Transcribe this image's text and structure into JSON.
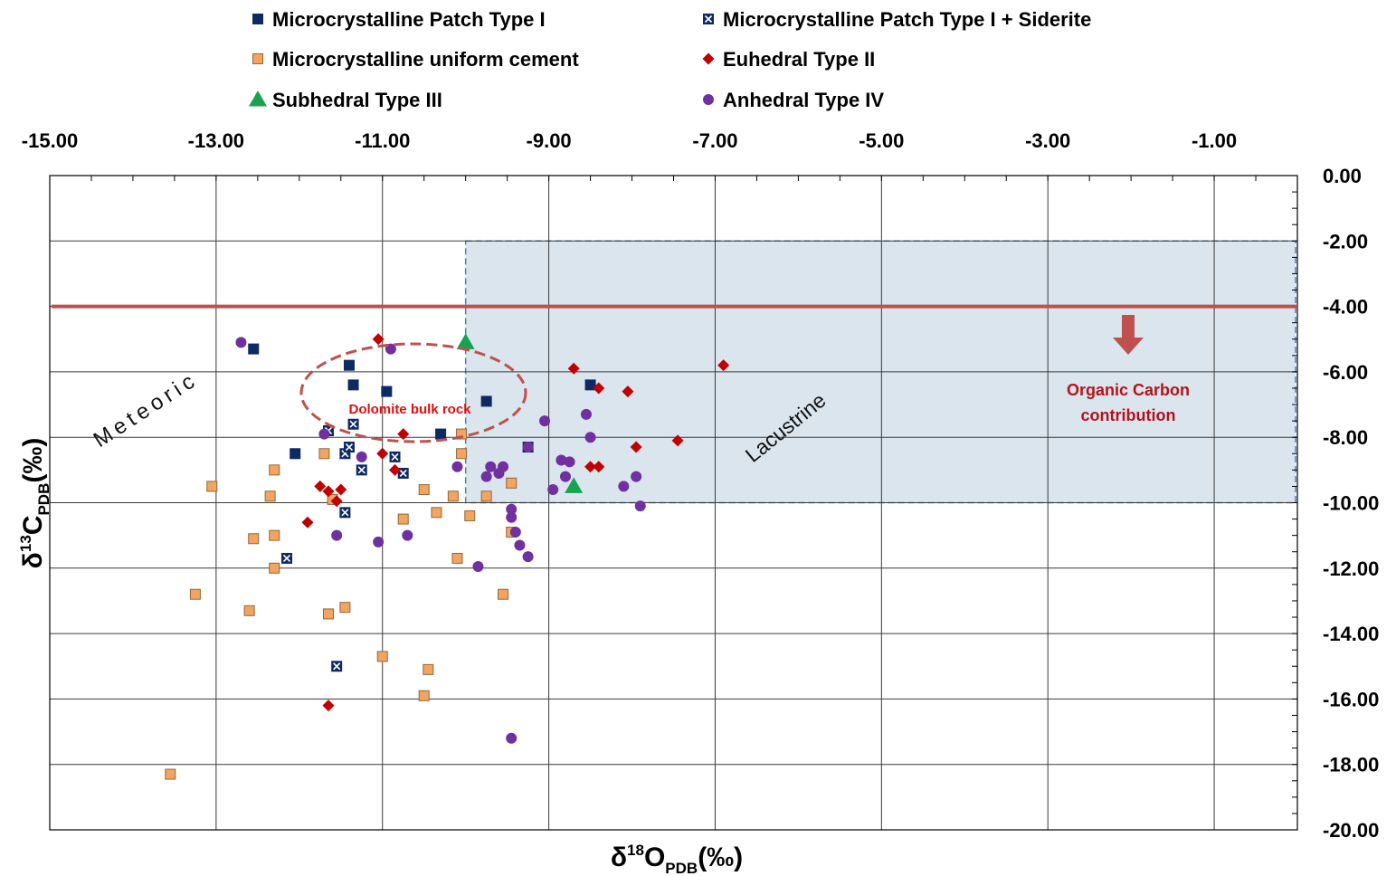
{
  "chart_data": {
    "type": "scatter",
    "xlabel": "δ18OPDB(‰)",
    "xlabel_parts": {
      "base": "δ",
      "sup": "18",
      "main": "O",
      "sub": "PDB",
      "unit": "(‰)"
    },
    "ylabel": "δ13CPDB(‰)",
    "ylabel_parts": {
      "base": "δ",
      "sup": "13",
      "main": "C",
      "sub": "PDB",
      "unit": "(‰)"
    },
    "xlim": [
      -15,
      0
    ],
    "ylim": [
      -20,
      0
    ],
    "x_axis_position": "top",
    "y_axis_position": "right",
    "grid": true,
    "legend_position": "top",
    "x_ticks": [
      "-15.00",
      "-13.00",
      "-11.00",
      "-9.00",
      "-7.00",
      "-5.00",
      "-3.00",
      "-1.00"
    ],
    "y_ticks": [
      "0.00",
      "-2.00",
      "-4.00",
      "-6.00",
      "-8.00",
      "-10.00",
      "-12.00",
      "-14.00",
      "-16.00",
      "-18.00",
      "-20.00"
    ],
    "series": [
      {
        "name": "Microcrystalline Patch Type I",
        "marker": "square",
        "color": "#0d2a63",
        "points": [
          [
            -12.55,
            -5.3
          ],
          [
            -11.4,
            -5.8
          ],
          [
            -11.35,
            -6.4
          ],
          [
            -10.95,
            -6.6
          ],
          [
            -9.75,
            -6.9
          ],
          [
            -8.5,
            -6.4
          ],
          [
            -12.05,
            -8.5
          ],
          [
            -10.3,
            -7.9
          ],
          [
            -9.25,
            -8.3
          ]
        ]
      },
      {
        "name": "Microcrystalline Patch Type I + Siderite",
        "marker": "square-x",
        "color": "#0d2a63",
        "points": [
          [
            -11.65,
            -7.8
          ],
          [
            -11.35,
            -7.6
          ],
          [
            -11.45,
            -8.5
          ],
          [
            -11.4,
            -8.3
          ],
          [
            -10.85,
            -8.6
          ],
          [
            -10.75,
            -9.1
          ],
          [
            -11.25,
            -9.0
          ],
          [
            -11.45,
            -10.3
          ],
          [
            -12.15,
            -11.7
          ],
          [
            -11.55,
            -15.0
          ]
        ]
      },
      {
        "name": "Microcrystalline uniform cement",
        "marker": "square",
        "color": "#f4a460",
        "points": [
          [
            -13.05,
            -9.5
          ],
          [
            -12.35,
            -9.8
          ],
          [
            -12.3,
            -9.0
          ],
          [
            -12.55,
            -11.1
          ],
          [
            -12.3,
            -11.0
          ],
          [
            -12.3,
            -12.0
          ],
          [
            -13.25,
            -12.8
          ],
          [
            -12.6,
            -13.3
          ],
          [
            -11.7,
            -8.5
          ],
          [
            -11.6,
            -9.9
          ],
          [
            -11.65,
            -13.4
          ],
          [
            -11.45,
            -13.2
          ],
          [
            -10.75,
            -10.5
          ],
          [
            -10.5,
            -9.6
          ],
          [
            -10.35,
            -10.3
          ],
          [
            -10.15,
            -9.8
          ],
          [
            -10.05,
            -8.5
          ],
          [
            -10.05,
            -7.9
          ],
          [
            -9.95,
            -10.4
          ],
          [
            -10.1,
            -11.7
          ],
          [
            -9.75,
            -9.8
          ],
          [
            -9.45,
            -9.4
          ],
          [
            -9.55,
            -12.8
          ],
          [
            -9.45,
            -10.9
          ],
          [
            -11.0,
            -14.7
          ],
          [
            -10.45,
            -15.1
          ],
          [
            -10.5,
            -15.9
          ],
          [
            -13.55,
            -18.3
          ]
        ]
      },
      {
        "name": "Euhedral Type II",
        "marker": "diamond",
        "color": "#c00000",
        "points": [
          [
            -11.05,
            -5.0
          ],
          [
            -11.0,
            -8.5
          ],
          [
            -10.85,
            -9.0
          ],
          [
            -10.75,
            -7.9
          ],
          [
            -11.5,
            -9.6
          ],
          [
            -11.55,
            -9.95
          ],
          [
            -11.75,
            -9.5
          ],
          [
            -11.65,
            -9.65
          ],
          [
            -11.9,
            -10.6
          ],
          [
            -11.65,
            -16.2
          ],
          [
            -8.7,
            -5.9
          ],
          [
            -8.4,
            -6.5
          ],
          [
            -8.05,
            -6.6
          ],
          [
            -8.5,
            -8.9
          ],
          [
            -8.4,
            -8.9
          ],
          [
            -7.95,
            -8.3
          ],
          [
            -7.45,
            -8.1
          ],
          [
            -6.9,
            -5.8
          ]
        ]
      },
      {
        "name": "Subhedral Type III",
        "marker": "triangle",
        "color": "#1aa152",
        "points": [
          [
            -10.0,
            -5.1
          ],
          [
            -8.7,
            -9.5
          ]
        ]
      },
      {
        "name": "Anhedral Type IV",
        "marker": "circle",
        "color": "#7030a0",
        "points": [
          [
            -12.7,
            -5.1
          ],
          [
            -10.9,
            -5.3
          ],
          [
            -11.7,
            -7.9
          ],
          [
            -11.25,
            -8.6
          ],
          [
            -10.1,
            -8.9
          ],
          [
            -9.75,
            -9.2
          ],
          [
            -9.7,
            -8.9
          ],
          [
            -9.6,
            -9.1
          ],
          [
            -9.55,
            -8.9
          ],
          [
            -9.45,
            -10.2
          ],
          [
            -9.45,
            -10.45
          ],
          [
            -9.4,
            -10.9
          ],
          [
            -9.35,
            -11.3
          ],
          [
            -9.25,
            -11.65
          ],
          [
            -9.25,
            -8.3
          ],
          [
            -9.05,
            -7.5
          ],
          [
            -8.85,
            -8.7
          ],
          [
            -8.8,
            -9.2
          ],
          [
            -8.75,
            -8.75
          ],
          [
            -8.95,
            -9.6
          ],
          [
            -8.55,
            -7.3
          ],
          [
            -8.5,
            -8.0
          ],
          [
            -8.1,
            -9.5
          ],
          [
            -7.95,
            -9.2
          ],
          [
            -7.9,
            -10.1
          ],
          [
            -11.55,
            -11.0
          ],
          [
            -11.05,
            -11.2
          ],
          [
            -10.7,
            -11.0
          ],
          [
            -9.85,
            -11.95
          ],
          [
            -9.45,
            -17.2
          ]
        ]
      }
    ],
    "annotations": [
      {
        "type": "hline",
        "y": -4.0,
        "color": "#c0504d"
      },
      {
        "type": "rect",
        "x": [
          -10.0,
          0
        ],
        "y": [
          -10.0,
          -2.0
        ],
        "label": "Lacustrine",
        "fill": "#dae5ee",
        "stroke": "#4f81bd"
      },
      {
        "type": "ellipse",
        "label": "Dolomite bulk rock",
        "color": "#c0504d"
      },
      {
        "type": "text",
        "label": "Meteoric"
      },
      {
        "type": "arrow",
        "label": "Organic Carbon contribution",
        "color": "#c0504d"
      }
    ]
  },
  "annotations_text": {
    "meteoric": "Meteoric",
    "lacustrine": "Lacustrine",
    "dolomite": "Dolomite bulk rock",
    "organic_line1": "Organic Carbon",
    "organic_line2": "contribution"
  }
}
